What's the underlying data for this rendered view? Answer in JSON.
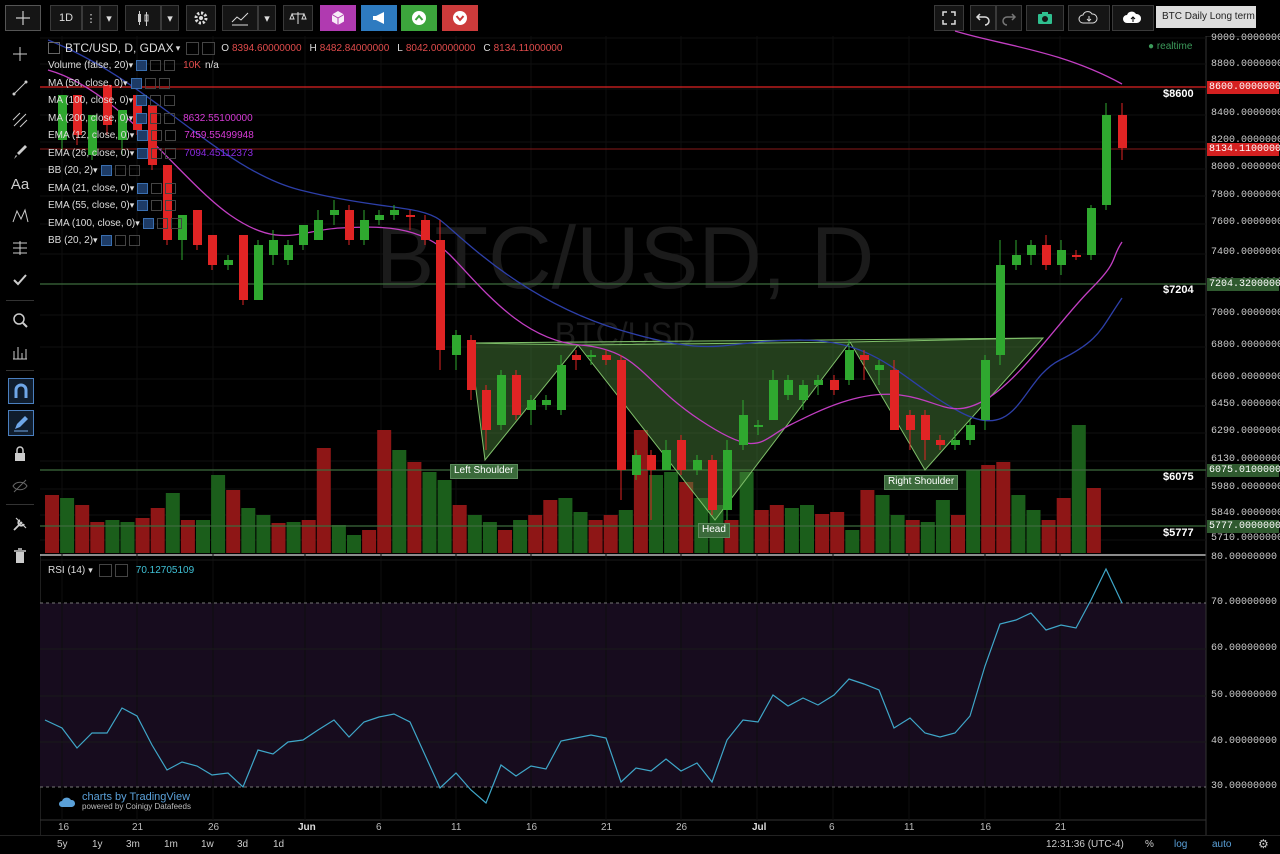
{
  "toolbar": {
    "interval": "1D",
    "title_tag": "BTC Daily Long term"
  },
  "symbol": {
    "name": "BTC/USD, D, GDAX",
    "open_label": "O",
    "open": "8394.60000000",
    "high_label": "H",
    "high": "8482.84000000",
    "low_label": "L",
    "low": "8042.00000000",
    "close_label": "C",
    "close": "8134.11000000",
    "realtime": "realtime",
    "watermark": "BTC/USD, D",
    "watermark_sub": "BTC/USD"
  },
  "indicators": [
    {
      "label": "Volume (false, 20)",
      "value": "10K",
      "value2": "n/a",
      "color": "#e24c4c"
    },
    {
      "label": "MA (50, close, 0)",
      "value": "",
      "color": "#ccc"
    },
    {
      "label": "MA (100, close, 0)",
      "value": "",
      "color": "#ccc"
    },
    {
      "label": "MA (200, close, 0)",
      "value": "8632.55100000",
      "color": "#d63bd6"
    },
    {
      "label": "EMA (12, close, 0)",
      "value": "7459.55499948",
      "color": "#d63bd6"
    },
    {
      "label": "EMA (26, close, 0)",
      "value": "7094.45112373",
      "color": "#8a2be2"
    },
    {
      "label": "BB (20, 2)",
      "value": "",
      "color": "#ccc"
    },
    {
      "label": "EMA (21, close, 0)",
      "value": "",
      "color": "#ccc"
    },
    {
      "label": "EMA (55, close, 0)",
      "value": "",
      "color": "#ccc"
    },
    {
      "label": "EMA (100, close, 0)",
      "value": "",
      "color": "#ccc"
    },
    {
      "label": "BB (20, 2)",
      "value": "",
      "color": "#ccc"
    }
  ],
  "price_axis": [
    "9000.00000000",
    "8800.00000000",
    "8600.00000000",
    "8400.00000000",
    "8200.00000000",
    "8000.00000000",
    "7800.00000000",
    "7600.00000000",
    "7400.00000000",
    "7200.00000000",
    "7000.00000000",
    "6800.00000000",
    "6600.00000000",
    "6450.00000000",
    "6290.00000000",
    "6130.00000000",
    "5980.00000000",
    "5840.00000000",
    "5710.00000000"
  ],
  "price_tags": [
    {
      "text": "8600.00000000",
      "bg": "#d42020"
    },
    {
      "text": "8134.11000000",
      "bg": "#d42020"
    },
    {
      "text": "7204.32000000",
      "bg": "#2f5a2f"
    },
    {
      "text": "6075.01000000",
      "bg": "#2f5a2f"
    },
    {
      "text": "5777.00000000",
      "bg": "#2f5a2f"
    }
  ],
  "levels": [
    "$8600",
    "$7204",
    "$6075",
    "$5777"
  ],
  "pattern_labels": {
    "left": "Left Shoulder",
    "head": "Head",
    "right": "Right Shoulder"
  },
  "rsi": {
    "label": "RSI (14)",
    "value": "70.12705109",
    "axis": [
      "80.00000000",
      "70.00000000",
      "60.00000000",
      "50.00000000",
      "40.00000000",
      "30.00000000"
    ]
  },
  "x_axis": [
    "16",
    "21",
    "26",
    "Jun",
    "6",
    "11",
    "16",
    "21",
    "26",
    "Jul",
    "6",
    "11",
    "16",
    "21"
  ],
  "branding": {
    "main": "charts by TradingView",
    "sub": "powered by Coinigy Datafeeds"
  },
  "bottom_bar": {
    "ranges": [
      "5y",
      "1y",
      "3m",
      "1m",
      "1w",
      "3d",
      "1d"
    ],
    "clock": "12:31:36 (UTC-4)",
    "pct": "%",
    "log": "log",
    "auto": "auto"
  },
  "colors": {
    "up": "#2fa82f",
    "down": "#e02424",
    "ema12": "#c23ec2",
    "ema26": "#2d3fa8",
    "pattern": "#4e8a3e"
  }
}
